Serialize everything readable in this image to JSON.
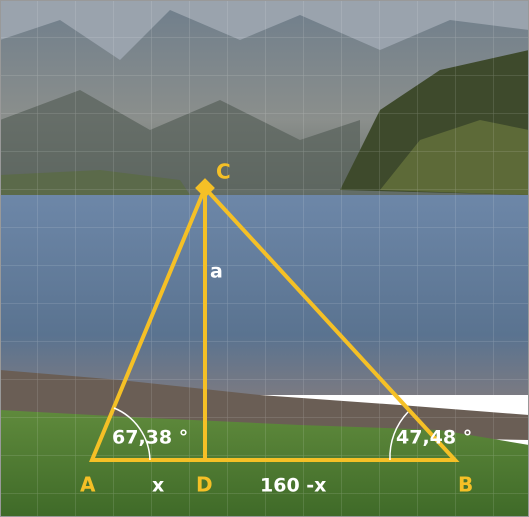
{
  "points": [
    {
      "label": "A"
    },
    {
      "label": "B"
    },
    {
      "label": "C"
    },
    {
      "label": "D"
    }
  ],
  "segments": {
    "height": "a",
    "left": "x",
    "right": "160 -x"
  },
  "angles": {
    "A": "67,38 °",
    "B": "47,48 °"
  }
}
